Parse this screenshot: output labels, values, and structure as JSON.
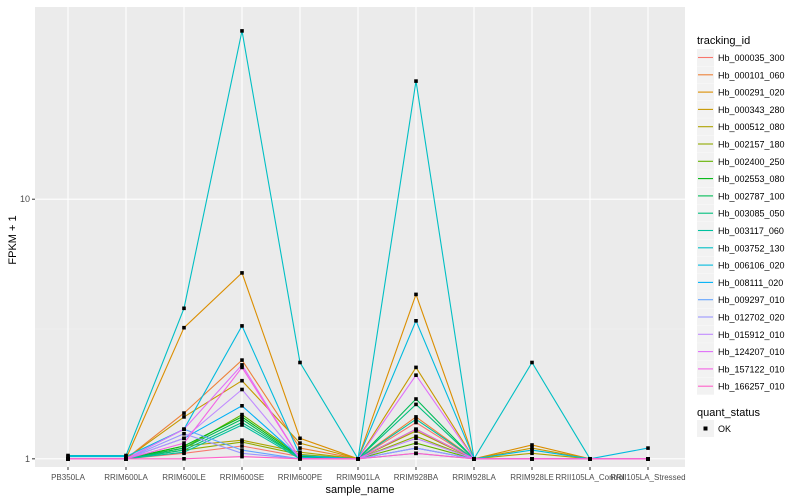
{
  "chart_data": {
    "type": "line",
    "xlabel": "sample_name",
    "ylabel": "FPKM + 1",
    "yscale": "log10",
    "ylim": [
      0.93,
      55
    ],
    "yticks": [
      1,
      10
    ],
    "ytick_labels": [
      "1",
      "10"
    ],
    "grid": true,
    "legend_position": "right",
    "categories": [
      "PB350LA",
      "RRIM600LA",
      "RRIM600LE",
      "RRIM600SE",
      "RRIM600PE",
      "RRIM901LA",
      "RRIM928BA",
      "RRIM928LA",
      "RRIM928LE",
      "RRII105LA_Control",
      "RRII105LA_Stressed"
    ],
    "tick_labels": [
      "PB350LA",
      "RRIM600LA",
      "RRIM600LE",
      "RRIM600SE",
      "RRIM600PE",
      "RRIM901LA",
      "RRIM928BA",
      "RRIM928LA",
      "RRIM928LE",
      "RRII105LA_Control",
      "RRII105LA_Stressed"
    ],
    "legend_title": "tracking_id",
    "series": [
      {
        "name": "Hb_000035_300",
        "color": "#F8766D",
        "values": [
          1.0,
          1.0,
          1.05,
          1.12,
          1.02,
          1.0,
          1.38,
          1.0,
          1.0,
          1.0,
          1.0
        ]
      },
      {
        "name": "Hb_000101_060",
        "color": "#EC8239",
        "values": [
          1.0,
          1.0,
          1.5,
          2.4,
          1.1,
          1.0,
          1.45,
          1.0,
          1.0,
          1.0,
          1.0
        ]
      },
      {
        "name": "Hb_000291_020",
        "color": "#DB8E00",
        "values": [
          1.0,
          1.0,
          3.2,
          5.2,
          1.2,
          1.0,
          4.3,
          1.0,
          1.13,
          1.0,
          1.0
        ]
      },
      {
        "name": "Hb_000343_280",
        "color": "#C79800",
        "values": [
          1.0,
          1.0,
          1.45,
          2.0,
          1.15,
          1.0,
          2.25,
          1.0,
          1.1,
          1.0,
          1.0
        ]
      },
      {
        "name": "Hb_000512_080",
        "color": "#AEA200",
        "values": [
          1.0,
          1.0,
          1.12,
          1.18,
          1.06,
          1.0,
          1.28,
          1.0,
          1.05,
          1.0,
          1.0
        ]
      },
      {
        "name": "Hb_002157_180",
        "color": "#8FAA00",
        "values": [
          1.0,
          1.0,
          1.08,
          1.16,
          1.04,
          1.0,
          1.22,
          1.0,
          1.0,
          1.0,
          1.0
        ]
      },
      {
        "name": "Hb_002400_250",
        "color": "#64B200",
        "values": [
          1.0,
          1.0,
          1.1,
          1.48,
          1.03,
          1.0,
          1.15,
          1.0,
          1.0,
          1.0,
          1.0
        ]
      },
      {
        "name": "Hb_002553_080",
        "color": "#00B712",
        "values": [
          1.0,
          1.0,
          1.12,
          1.45,
          1.02,
          1.0,
          1.3,
          1.0,
          1.0,
          1.0,
          1.0
        ]
      },
      {
        "name": "Hb_002787_100",
        "color": "#00BC56",
        "values": [
          1.0,
          1.0,
          1.1,
          1.42,
          1.01,
          1.0,
          1.7,
          1.0,
          1.0,
          1.0,
          1.0
        ]
      },
      {
        "name": "Hb_003085_050",
        "color": "#00BF7D",
        "values": [
          1.0,
          1.0,
          1.08,
          1.38,
          1.01,
          1.0,
          1.62,
          1.0,
          1.0,
          1.0,
          1.0
        ]
      },
      {
        "name": "Hb_003117_060",
        "color": "#00C19F",
        "values": [
          1.0,
          1.0,
          1.06,
          1.35,
          1.0,
          1.0,
          1.42,
          1.0,
          1.0,
          1.0,
          1.0
        ]
      },
      {
        "name": "Hb_003752_130",
        "color": "#00BFC4",
        "values": [
          1.03,
          1.03,
          3.8,
          44.5,
          2.35,
          1.0,
          28.5,
          1.0,
          2.35,
          1.0,
          1.0
        ]
      },
      {
        "name": "Hb_006106_020",
        "color": "#00BADE",
        "values": [
          1.02,
          1.02,
          1.3,
          3.25,
          1.03,
          1.0,
          3.4,
          1.0,
          1.08,
          1.0,
          1.1
        ]
      },
      {
        "name": "Hb_008111_020",
        "color": "#00B0F6",
        "values": [
          1.0,
          1.0,
          1.2,
          1.6,
          1.01,
          1.0,
          1.1,
          1.0,
          1.0,
          1.0,
          1.0
        ]
      },
      {
        "name": "Hb_009297_010",
        "color": "#64A4FF",
        "values": [
          1.0,
          1.0,
          1.3,
          1.08,
          1.0,
          1.0,
          1.05,
          1.0,
          1.0,
          1.0,
          1.0
        ]
      },
      {
        "name": "Hb_012702_020",
        "color": "#9A96FF",
        "values": [
          1.0,
          1.0,
          1.25,
          1.05,
          1.0,
          1.0,
          1.1,
          1.0,
          1.0,
          1.0,
          1.0
        ]
      },
      {
        "name": "Hb_015912_010",
        "color": "#C18BFF",
        "values": [
          1.0,
          1.0,
          1.2,
          1.85,
          1.0,
          1.0,
          1.2,
          1.0,
          1.0,
          1.0,
          1.0
        ]
      },
      {
        "name": "Hb_124207_010",
        "color": "#DF70F8",
        "values": [
          1.0,
          1.0,
          1.3,
          2.3,
          1.0,
          1.0,
          2.1,
          1.0,
          1.0,
          1.0,
          1.0
        ]
      },
      {
        "name": "Hb_157122_010",
        "color": "#F365E6",
        "values": [
          1.0,
          1.0,
          1.15,
          2.25,
          1.0,
          1.0,
          1.3,
          1.0,
          1.0,
          1.0,
          1.0
        ]
      },
      {
        "name": "Hb_166257_010",
        "color": "#FF61C9",
        "values": [
          1.0,
          1.0,
          1.0,
          1.02,
          1.0,
          1.0,
          1.05,
          1.0,
          1.0,
          1.0,
          1.0
        ]
      }
    ],
    "status_legend_title": "quant_status",
    "status_legend_label": "OK",
    "colors": {
      "panel_bg": "#EBEBEB",
      "grid_major": "#FFFFFF",
      "grid_minor": "#F4F4F4",
      "axis_text": "#4D4D4D",
      "legend_key_bg": "#F2F2F2",
      "point": "#000000"
    }
  }
}
